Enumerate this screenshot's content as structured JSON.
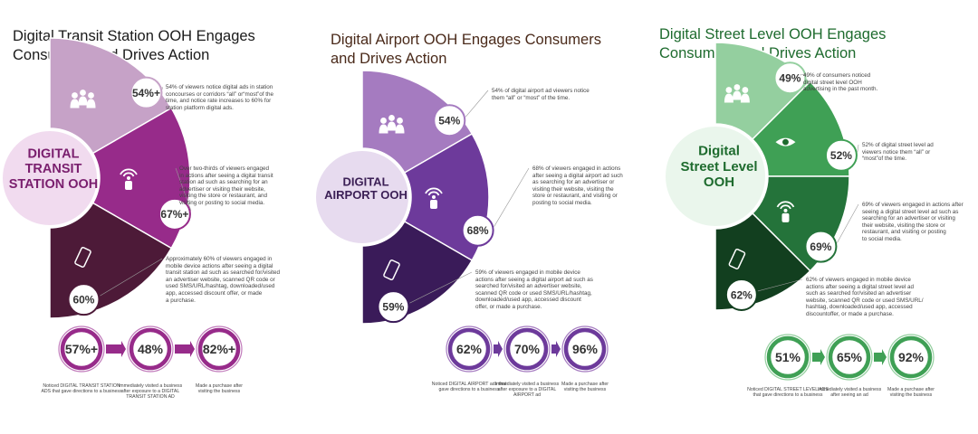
{
  "colors": {
    "transit_dark": "#7a1f6e",
    "airport_dark": "#5b2a80",
    "airport_title": "#4a2a1a",
    "street_dark": "#1e6b2e"
  },
  "panels": [
    {
      "id": "transit",
      "title_lines": [
        "Digital Transit Station OOH Engages",
        "Consumers and Drives Action"
      ],
      "center_lines": [
        "DIGITAL",
        "TRANSIT",
        "STATION OOH"
      ],
      "segments": [
        {
          "value": "54%+",
          "icon": "people-icon",
          "desc_lines": [
            "54% of viewers notice digital ads in station",
            "concourses or corridors “all” or“most”of the",
            "time, and notice rate increases to 60% for",
            "station platform digital ads."
          ]
        },
        {
          "value": "67%+",
          "icon": "touch-signal-icon",
          "desc_lines": [
            "Over two-thirds of viewers engaged",
            "in actions after seeing a digital transit",
            "station ad such as searching for an",
            "advertiser or visiting their website,",
            "visiting the store or restaurant, and",
            "visiting or posting to social media."
          ]
        },
        {
          "value": "60%",
          "icon": "phone-icon",
          "desc_lines": [
            "Approximately 60% of viewers engaged in",
            "mobile device actions after seeing a digital",
            "transit station ad such as searched for/visited",
            "an advertiser website, scanned QR code or",
            "used SMS/URL/hashtag, downloaded/used",
            "app, accessed discount offer, or made",
            "a purchase."
          ]
        }
      ],
      "stats": [
        {
          "value": "57%+",
          "label_lines": [
            "Noticed DIGITAL TRANSIT STATION",
            "ADS that gave directions to a business"
          ]
        },
        {
          "value": "48%",
          "label_lines": [
            "Immediately visited a business",
            "after exposure to a DIGITAL",
            "TRANSIT STATION AD"
          ]
        },
        {
          "value": "82%+",
          "label_lines": [
            "Made a purchase after",
            "visiting the business"
          ]
        }
      ]
    },
    {
      "id": "airport",
      "title_lines": [
        "Digital Airport OOH Engages Consumers",
        "and Drives Action"
      ],
      "center_lines": [
        "DIGITAL",
        "AIRPORT OOH"
      ],
      "segments": [
        {
          "value": "54%",
          "icon": "people-icon",
          "desc_lines": [
            "54% of digital airport ad viewers notice",
            "them “all” or “most” of the time."
          ]
        },
        {
          "value": "68%",
          "icon": "touch-signal-icon",
          "desc_lines": [
            "68% of viewers engaged in actions",
            "after seeing a digital airport ad such",
            "as searching for an advertiser or",
            "visiting their website, visiting the",
            "store or restaurant, and visiting or",
            "posting to social media."
          ]
        },
        {
          "value": "59%",
          "icon": "phone-icon",
          "desc_lines": [
            "59% of viewers engaged in mobile device",
            "actions after seeing a digital airport ad such as",
            "searched for/visited an advertiser website,",
            "scanned QR code or used SMS/URL/hashtag,",
            "downloaded/used app, accessed discount",
            "offer, or made a purchase."
          ]
        }
      ],
      "stats": [
        {
          "value": "62%",
          "label_lines": [
            "Noticed DIGITAL AIRPORT ads that",
            "gave directions to a business"
          ]
        },
        {
          "value": "70%",
          "label_lines": [
            "Immediately visited a business",
            "after exposure to a DIGITAL",
            "AIRPORT ad"
          ]
        },
        {
          "value": "96%",
          "label_lines": [
            "Made a purchase after",
            "visiting the business"
          ]
        }
      ]
    },
    {
      "id": "street",
      "title_lines": [
        "Digital Street Level OOH Engages",
        "Consumers and Drives Action"
      ],
      "center_lines": [
        "Digital",
        "Street Level",
        "OOH"
      ],
      "segments": [
        {
          "value": "49%",
          "icon": "people-icon",
          "desc_lines": [
            "49% of consumers noticed",
            "digital street level OOH",
            "advertising in the past month."
          ]
        },
        {
          "value": "52%",
          "icon": "eye-icon",
          "desc_lines": [
            "52% of digital street level ad",
            "viewers notice them “all” or",
            "“most”of the time."
          ]
        },
        {
          "value": "69%",
          "icon": "touch-signal-icon",
          "desc_lines": [
            "69% of viewers engaged in actions after",
            "seeing a digital street level ad such as",
            "searching for an advertiser or visiting",
            "their website, visiting the store or",
            "restaurant, and visiting or posting",
            "to social media."
          ]
        },
        {
          "value": "62%",
          "icon": "phone-icon",
          "desc_lines": [
            "62% of viewers engaged in mobile device",
            "actions after seeing a digital street level ad",
            "such as searched for/visited an advertiser",
            "website, scanned QR code or used SMS/URL/",
            "hashtag, downloaded/used app, accessed",
            "discountoffer, or made a purchase."
          ]
        }
      ],
      "stats": [
        {
          "value": "51%",
          "label_lines": [
            "Noticed DIGITAL STREET LEVEL ADS",
            "that gave directions to a business"
          ]
        },
        {
          "value": "65%",
          "label_lines": [
            "Immediately visited a business",
            "after seeing an ad"
          ]
        },
        {
          "value": "92%",
          "label_lines": [
            "Made a purchase after",
            "visiting the business"
          ]
        }
      ]
    }
  ]
}
